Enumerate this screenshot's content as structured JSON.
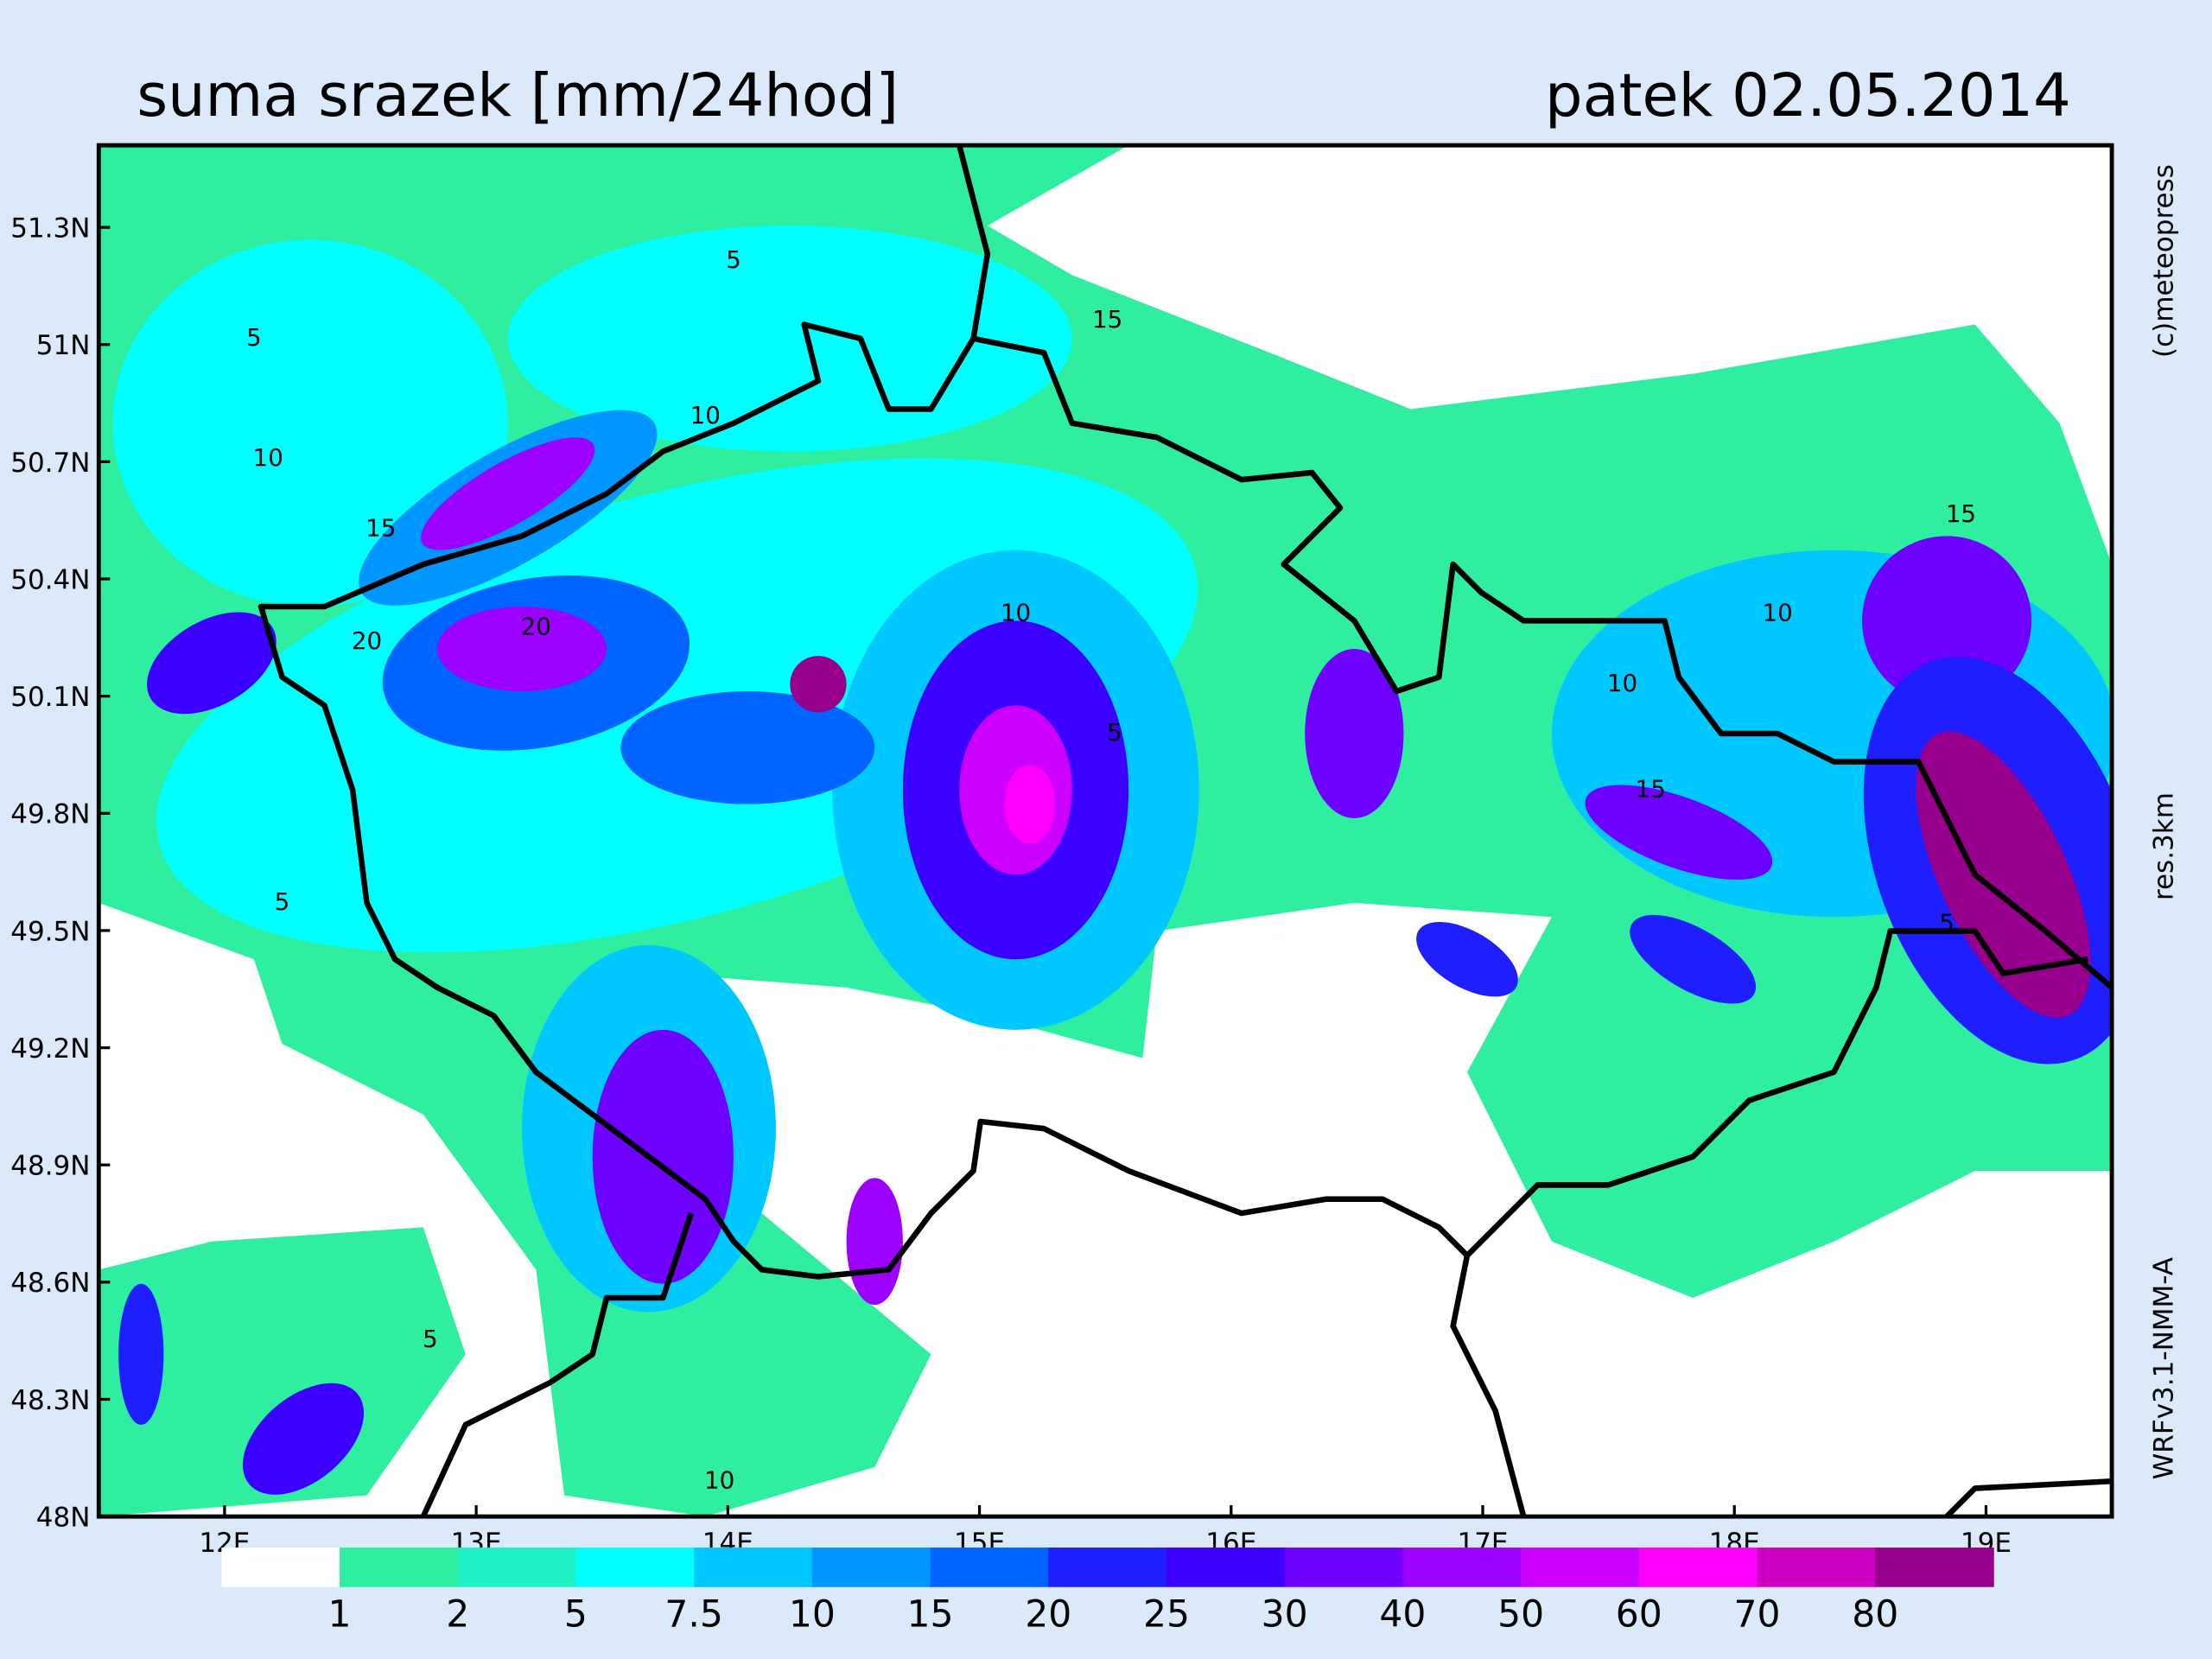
{
  "map": {
    "title": "suma srazek [mm/24hod]",
    "date": "patek 02.05.2014",
    "credits": [
      "(c)meteopress",
      "res.3km",
      "WRFv3.1-NMM-A"
    ],
    "xlim": [
      11.5,
      19.5
    ],
    "ylim": [
      48,
      51.51
    ],
    "xticks": [
      {
        "value": 12,
        "label": "12E"
      },
      {
        "value": 13,
        "label": "13E"
      },
      {
        "value": 14,
        "label": "14E"
      },
      {
        "value": 15,
        "label": "15E"
      },
      {
        "value": 16,
        "label": "16E"
      },
      {
        "value": 17,
        "label": "17E"
      },
      {
        "value": 18,
        "label": "18E"
      },
      {
        "value": 19,
        "label": "19E"
      }
    ],
    "yticks": [
      {
        "value": 48,
        "label": "48N"
      },
      {
        "value": 48.3,
        "label": "48.3N"
      },
      {
        "value": 48.6,
        "label": "48.6N"
      },
      {
        "value": 48.9,
        "label": "48.9N"
      },
      {
        "value": 49.2,
        "label": "49.2N"
      },
      {
        "value": 49.5,
        "label": "49.5N"
      },
      {
        "value": 49.8,
        "label": "49.8N"
      },
      {
        "value": 50.1,
        "label": "50.1N"
      },
      {
        "value": 50.4,
        "label": "50.4N"
      },
      {
        "value": 50.7,
        "label": "50.7N"
      },
      {
        "value": 51,
        "label": "51N"
      },
      {
        "value": 51.3,
        "label": "51.3N"
      }
    ],
    "colorbar": {
      "levels": [
        1,
        2,
        5,
        7.5,
        10,
        15,
        20,
        25,
        30,
        40,
        50,
        60,
        70,
        80
      ],
      "colors": [
        "#ffffff",
        "#30eea0",
        "#1ef0c8",
        "#00ffff",
        "#00c8ff",
        "#0096ff",
        "#0064ff",
        "#1e1eff",
        "#3c00ff",
        "#6e00ff",
        "#9c00ff",
        "#cc00ff",
        "#ff00ff",
        "#cc00c0",
        "#96008c"
      ]
    },
    "contour_labels": [
      5,
      10,
      15,
      20,
      5,
      10,
      15,
      20,
      10,
      5,
      15,
      10,
      5,
      10,
      15,
      5,
      10,
      5
    ]
  }
}
